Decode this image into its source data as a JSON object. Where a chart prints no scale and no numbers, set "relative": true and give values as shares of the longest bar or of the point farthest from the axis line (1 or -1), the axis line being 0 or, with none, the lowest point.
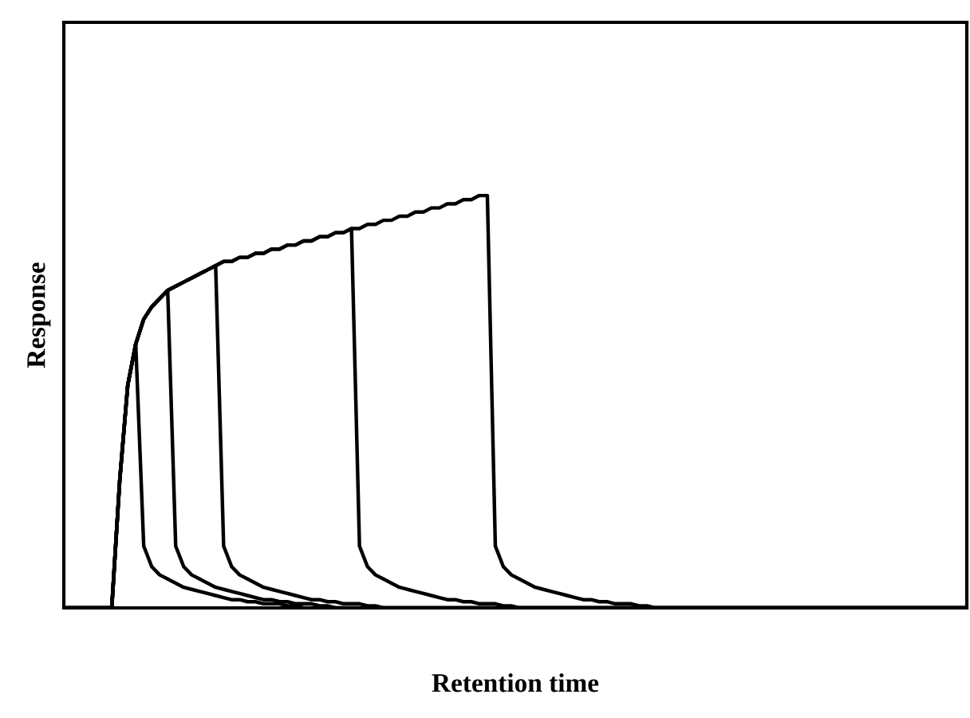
{
  "chart_data": {
    "type": "line",
    "xlabel": "Retention time",
    "ylabel": "Response",
    "relative": true,
    "categories": [
      null,
      null,
      null,
      null,
      null,
      null,
      null,
      null,
      null,
      null,
      null,
      null,
      null,
      null,
      null,
      null,
      null,
      null,
      null,
      null,
      null,
      null,
      null,
      null,
      null,
      null,
      null,
      null,
      null,
      null,
      null,
      null,
      null,
      null,
      null,
      null,
      null,
      null,
      null,
      null,
      null,
      null,
      null,
      null,
      null,
      null,
      null,
      null,
      null,
      null,
      null,
      null,
      null,
      null,
      null,
      null,
      null,
      null,
      null,
      null,
      null,
      null,
      null,
      null,
      null,
      null,
      null,
      null,
      null,
      null,
      null,
      null,
      null,
      null,
      null,
      null,
      null,
      null,
      null,
      null,
      null,
      null,
      null,
      null,
      null,
      null,
      null,
      null,
      null,
      null,
      null,
      null,
      null,
      null,
      null,
      null,
      null,
      null,
      null,
      null,
      null,
      null,
      null,
      null,
      null,
      null,
      null,
      null,
      null,
      null,
      null,
      null,
      null,
      null
    ],
    "series": [
      {
        "color": "#000000",
        "values": [
          0,
          0,
          0,
          0,
          0,
          0,
          0,
          0.31,
          0.54,
          0.64,
          0.15,
          0.1,
          0.08,
          0.07,
          0.06,
          0.05,
          0.045,
          0.04,
          0.035,
          0.03,
          0.025,
          0.02,
          0.02,
          0.015,
          0.015,
          0.01,
          0.01,
          0.01,
          0.005,
          0.005,
          0,
          0,
          0,
          0,
          0,
          0,
          0,
          0,
          0,
          0,
          0,
          0,
          0,
          0,
          0,
          0,
          0,
          0,
          0,
          0,
          0,
          0,
          0,
          0,
          0,
          0,
          0,
          0,
          0,
          0,
          0,
          0,
          0,
          0,
          0,
          0,
          0,
          0,
          0,
          0,
          0,
          0,
          0,
          0,
          0,
          0,
          0,
          0,
          0,
          0,
          0,
          0,
          0,
          0,
          0,
          0,
          0,
          0,
          0,
          0,
          0,
          0,
          0,
          0,
          0,
          0,
          0,
          0,
          0,
          0,
          0,
          0,
          0,
          0,
          0,
          0,
          0,
          0,
          0,
          0,
          0,
          0,
          0,
          0
        ]
      },
      {
        "color": "#000000",
        "values": [
          0,
          0,
          0,
          0,
          0,
          0,
          0,
          0.31,
          0.54,
          0.64,
          0.7,
          0.73,
          0.75,
          0.77,
          0.15,
          0.1,
          0.08,
          0.07,
          0.06,
          0.05,
          0.045,
          0.04,
          0.035,
          0.03,
          0.025,
          0.02,
          0.02,
          0.015,
          0.015,
          0.01,
          0.01,
          0.01,
          0.005,
          0.005,
          0,
          0,
          0,
          0,
          0,
          0,
          0,
          0,
          0,
          0,
          0,
          0,
          0,
          0,
          0,
          0,
          0,
          0,
          0,
          0,
          0,
          0,
          0,
          0,
          0,
          0,
          0,
          0,
          0,
          0,
          0,
          0,
          0,
          0,
          0,
          0,
          0,
          0,
          0,
          0,
          0,
          0,
          0,
          0,
          0,
          0,
          0,
          0,
          0,
          0,
          0,
          0,
          0,
          0,
          0,
          0,
          0,
          0,
          0,
          0,
          0,
          0,
          0,
          0,
          0,
          0,
          0,
          0,
          0,
          0,
          0,
          0,
          0,
          0,
          0,
          0,
          0,
          0,
          0,
          0
        ]
      },
      {
        "color": "#000000",
        "values": [
          0,
          0,
          0,
          0,
          0,
          0,
          0,
          0.31,
          0.54,
          0.64,
          0.7,
          0.73,
          0.75,
          0.77,
          0.78,
          0.79,
          0.8,
          0.81,
          0.82,
          0.83,
          0.15,
          0.1,
          0.08,
          0.07,
          0.06,
          0.05,
          0.045,
          0.04,
          0.035,
          0.03,
          0.025,
          0.02,
          0.02,
          0.015,
          0.015,
          0.01,
          0.01,
          0.01,
          0.005,
          0.005,
          0,
          0,
          0,
          0,
          0,
          0,
          0,
          0,
          0,
          0,
          0,
          0,
          0,
          0,
          0,
          0,
          0,
          0,
          0,
          0,
          0,
          0,
          0,
          0,
          0,
          0,
          0,
          0,
          0,
          0,
          0,
          0,
          0,
          0,
          0,
          0,
          0,
          0,
          0,
          0,
          0,
          0,
          0,
          0,
          0,
          0,
          0,
          0,
          0,
          0,
          0,
          0,
          0,
          0,
          0,
          0,
          0,
          0,
          0,
          0,
          0,
          0,
          0,
          0,
          0,
          0,
          0,
          0,
          0,
          0,
          0,
          0,
          0,
          0
        ]
      },
      {
        "color": "#000000",
        "values": [
          0,
          0,
          0,
          0,
          0,
          0,
          0,
          0.31,
          0.54,
          0.64,
          0.7,
          0.73,
          0.75,
          0.77,
          0.78,
          0.79,
          0.8,
          0.81,
          0.82,
          0.83,
          0.84,
          0.84,
          0.85,
          0.85,
          0.86,
          0.86,
          0.87,
          0.87,
          0.88,
          0.88,
          0.89,
          0.89,
          0.9,
          0.9,
          0.91,
          0.91,
          0.92,
          0.15,
          0.1,
          0.08,
          0.07,
          0.06,
          0.05,
          0.045,
          0.04,
          0.035,
          0.03,
          0.025,
          0.02,
          0.02,
          0.015,
          0.015,
          0.01,
          0.01,
          0.01,
          0.005,
          0.005,
          0,
          0,
          0,
          0,
          0,
          0,
          0,
          0,
          0,
          0,
          0,
          0,
          0,
          0,
          0,
          0,
          0,
          0,
          0,
          0,
          0,
          0,
          0,
          0,
          0,
          0,
          0,
          0,
          0,
          0,
          0,
          0,
          0,
          0,
          0,
          0,
          0,
          0,
          0,
          0,
          0,
          0,
          0,
          0,
          0,
          0,
          0,
          0,
          0,
          0,
          0,
          0,
          0,
          0,
          0,
          0,
          0
        ]
      },
      {
        "color": "#000000",
        "values": [
          0,
          0,
          0,
          0,
          0,
          0,
          0,
          0.31,
          0.54,
          0.64,
          0.7,
          0.73,
          0.75,
          0.77,
          0.78,
          0.79,
          0.8,
          0.81,
          0.82,
          0.83,
          0.84,
          0.84,
          0.85,
          0.85,
          0.86,
          0.86,
          0.87,
          0.87,
          0.88,
          0.88,
          0.89,
          0.89,
          0.9,
          0.9,
          0.91,
          0.91,
          0.92,
          0.92,
          0.93,
          0.93,
          0.94,
          0.94,
          0.95,
          0.95,
          0.96,
          0.96,
          0.97,
          0.97,
          0.98,
          0.98,
          0.99,
          0.99,
          1.0,
          1.0,
          0.15,
          0.1,
          0.08,
          0.07,
          0.06,
          0.05,
          0.045,
          0.04,
          0.035,
          0.03,
          0.025,
          0.02,
          0.02,
          0.015,
          0.015,
          0.01,
          0.01,
          0.01,
          0.005,
          0.005,
          0,
          0,
          0,
          0,
          0,
          0,
          0,
          0,
          0,
          0,
          0,
          0,
          0,
          0,
          0,
          0,
          0,
          0,
          0,
          0,
          0,
          0,
          0,
          0,
          0,
          0,
          0,
          0,
          0,
          0,
          0,
          0,
          0,
          0,
          0,
          0,
          0,
          0,
          0,
          0
        ]
      }
    ]
  }
}
